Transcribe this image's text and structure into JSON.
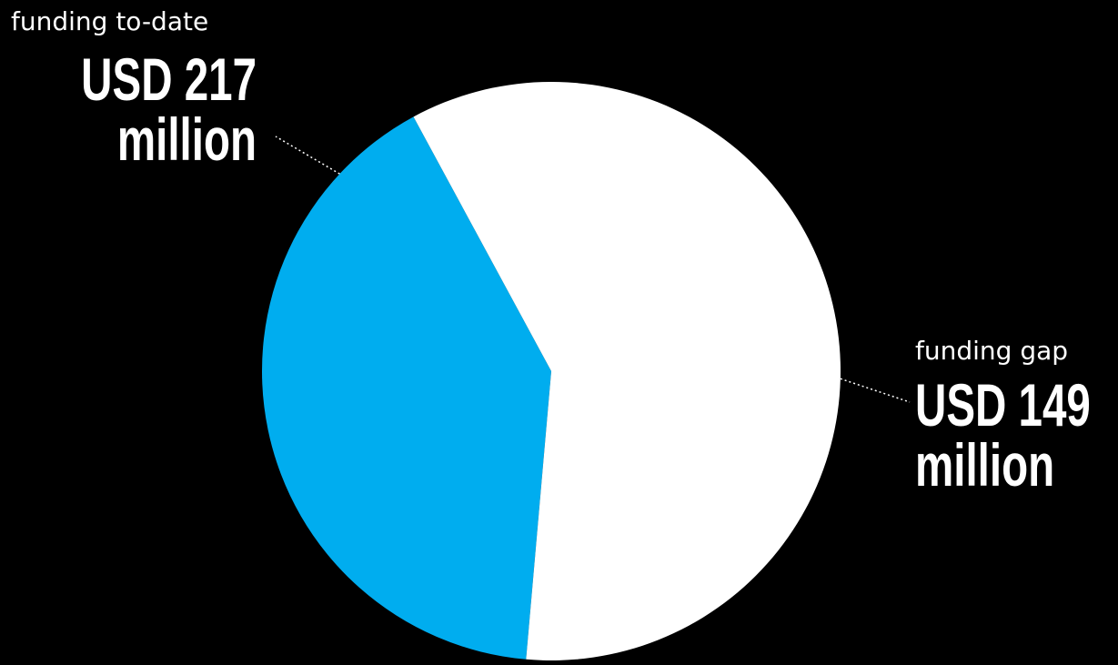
{
  "chart_data": {
    "type": "pie",
    "title": "",
    "unit": "USD million",
    "slices": [
      {
        "caption": "funding to-date",
        "amount_line1": "USD 217",
        "amount_line2": "million",
        "value": 217,
        "color": "#ffffff"
      },
      {
        "caption": "funding gap",
        "amount_line1": "USD 149",
        "amount_line2": "million",
        "value": 149,
        "color": "#00adef"
      }
    ],
    "background": "#000000",
    "legend": "none",
    "leader_lines": "dotted"
  }
}
